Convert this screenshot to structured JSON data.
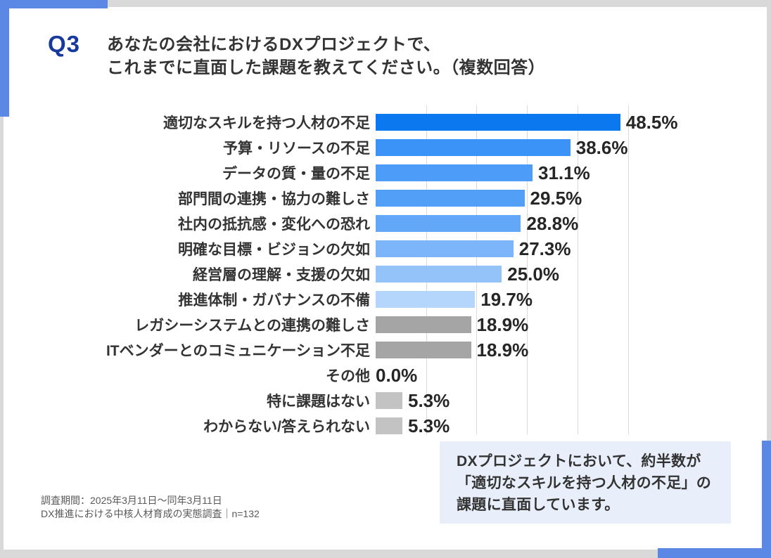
{
  "header": {
    "question_number": "Q3",
    "title_line1": "あなたの会社におけるDXプロジェクトで、",
    "title_line2": "これまでに直面した課題を教えてください。（複数回答）"
  },
  "chart_data": {
    "type": "bar",
    "orientation": "horizontal",
    "title": "",
    "xlabel": "",
    "ylabel": "",
    "xlim": [
      0,
      50
    ],
    "gridline_interval_percent": 10,
    "grid": true,
    "legend": false,
    "categories": [
      "適切なスキルを持つ人材の不足",
      "予算・リソースの不足",
      "データの質・量の不足",
      "部門間の連携・協力の難しさ",
      "社内の抵抗感・変化への恐れ",
      "明確な目標・ビジョンの欠如",
      "経営層の理解・支援の欠如",
      "推進体制・ガバナンスの不備",
      "レガシーシステムとの連携の難しさ",
      "ITベンダーとのコミュニケーション不足",
      "その他",
      "特に課題はない",
      "わからない/答えられない"
    ],
    "values": [
      48.5,
      38.6,
      31.1,
      29.5,
      28.8,
      27.3,
      25.0,
      19.7,
      18.9,
      18.9,
      0.0,
      5.3,
      5.3
    ],
    "value_labels": [
      "48.5%",
      "38.6%",
      "31.1%",
      "29.5%",
      "28.8%",
      "27.3%",
      "25.0%",
      "19.7%",
      "18.9%",
      "18.9%",
      "0.0%",
      "5.3%",
      "5.3%"
    ],
    "bar_colors": [
      "#0b78f0",
      "#3b92f7",
      "#4c9cf8",
      "#529ff8",
      "#63a8f8",
      "#7cb5f9",
      "#94c3fa",
      "#b4d5fc",
      "#a5a5a5",
      "#a5a5a5",
      "#c3c3c3",
      "#c3c3c3",
      "#c3c3c3"
    ]
  },
  "callout": {
    "line1": "DXプロジェクトにおいて、約半数が",
    "line2": "「適切なスキルを持つ人材の不足」の",
    "line3": "課題に直面しています。"
  },
  "footer": {
    "line1": "調査期間：2025年3月11日～同年3月11日",
    "line2": "DX推進における中核人材育成の実態調査｜n=132"
  },
  "colors": {
    "accent_blue": "#5b87e5",
    "question_navy": "#17399e",
    "gridline": "#d9d9d9",
    "border_gray": "#d9d9d9",
    "value_text": "#262626",
    "label_text": "#333333",
    "callout_bg": "#e9effa"
  }
}
